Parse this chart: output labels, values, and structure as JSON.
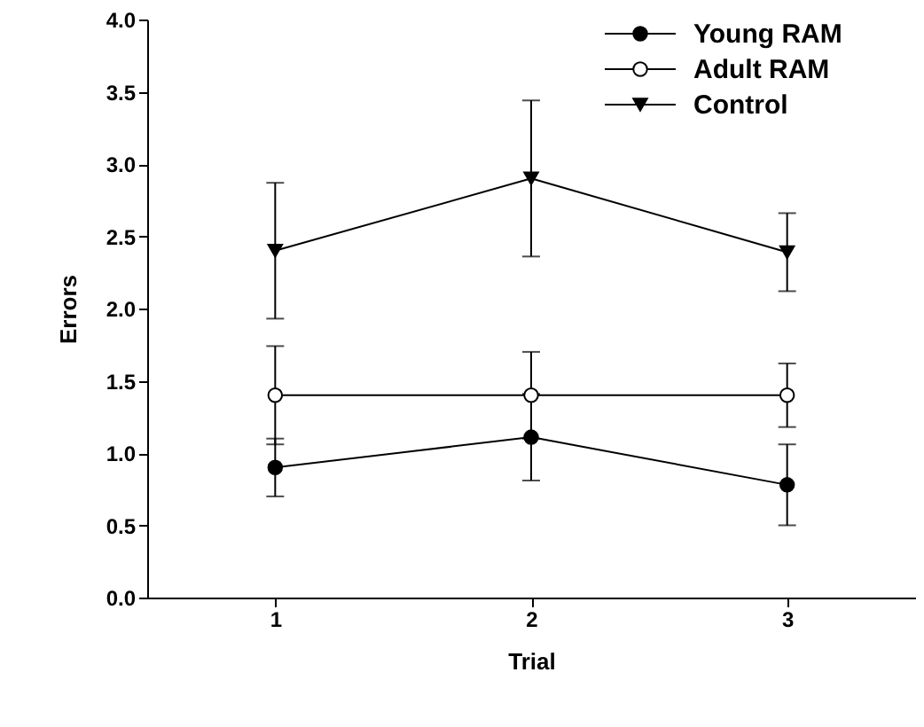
{
  "chart_data": {
    "type": "line",
    "xlabel": "Trial",
    "ylabel": "Errors",
    "x": [
      1,
      2,
      3
    ],
    "xlim": [
      0.5,
      3.5
    ],
    "xticks": [
      1,
      2,
      3
    ],
    "ylim": [
      0,
      4
    ],
    "yticks": [
      {
        "value": 0,
        "label": "0.0"
      },
      {
        "value": 0.5,
        "label": "0.5"
      },
      {
        "value": 1,
        "label": "1.0"
      },
      {
        "value": 1.5,
        "label": "1.5"
      },
      {
        "value": 2,
        "label": "2.0"
      },
      {
        "value": 2.5,
        "label": "2.5"
      },
      {
        "value": 3,
        "label": "3.0"
      },
      {
        "value": 3.5,
        "label": "3.5"
      },
      {
        "value": 4,
        "label": "4.0"
      }
    ],
    "grid": false,
    "legend": "top right",
    "line_style": "solid",
    "series": [
      {
        "name": "Young RAM",
        "color": "#000000",
        "marker": "circle",
        "values": [
          0.9,
          1.11,
          0.78
        ],
        "errors": [
          0.2,
          0.3,
          0.28
        ]
      },
      {
        "name": "Adult RAM",
        "color": "#000000",
        "marker": "circle",
        "colors": [
          "#ffffff",
          "#ffffff",
          "#ffffff"
        ],
        "values": [
          1.4,
          1.4,
          1.4
        ],
        "errors": [
          0.34,
          0.3,
          0.22
        ]
      },
      {
        "name": "Control",
        "color": "#000000",
        "marker": "triangle-down",
        "values": [
          2.4,
          2.9,
          2.39
        ],
        "errors": [
          0.47,
          0.54,
          0.27
        ]
      }
    ]
  }
}
